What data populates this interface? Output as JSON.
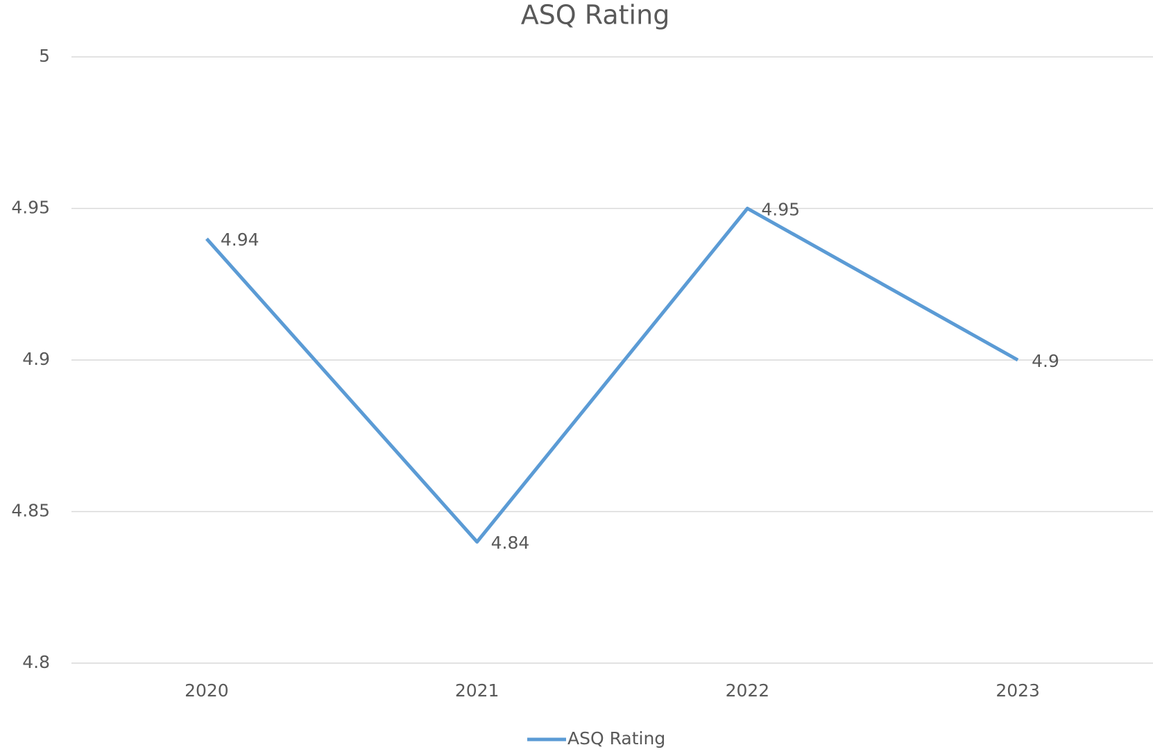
{
  "chart_data": {
    "type": "line",
    "title": "ASQ Rating",
    "categories": [
      "2020",
      "2021",
      "2022",
      "2023"
    ],
    "series": [
      {
        "name": "ASQ Rating",
        "color": "#5b9bd5",
        "values": [
          4.94,
          4.84,
          4.95,
          4.9
        ]
      }
    ],
    "ylim": [
      4.8,
      5
    ],
    "yticks": [
      4.8,
      4.85,
      4.9,
      4.95,
      5
    ],
    "grid": true,
    "legend": "bottom"
  }
}
